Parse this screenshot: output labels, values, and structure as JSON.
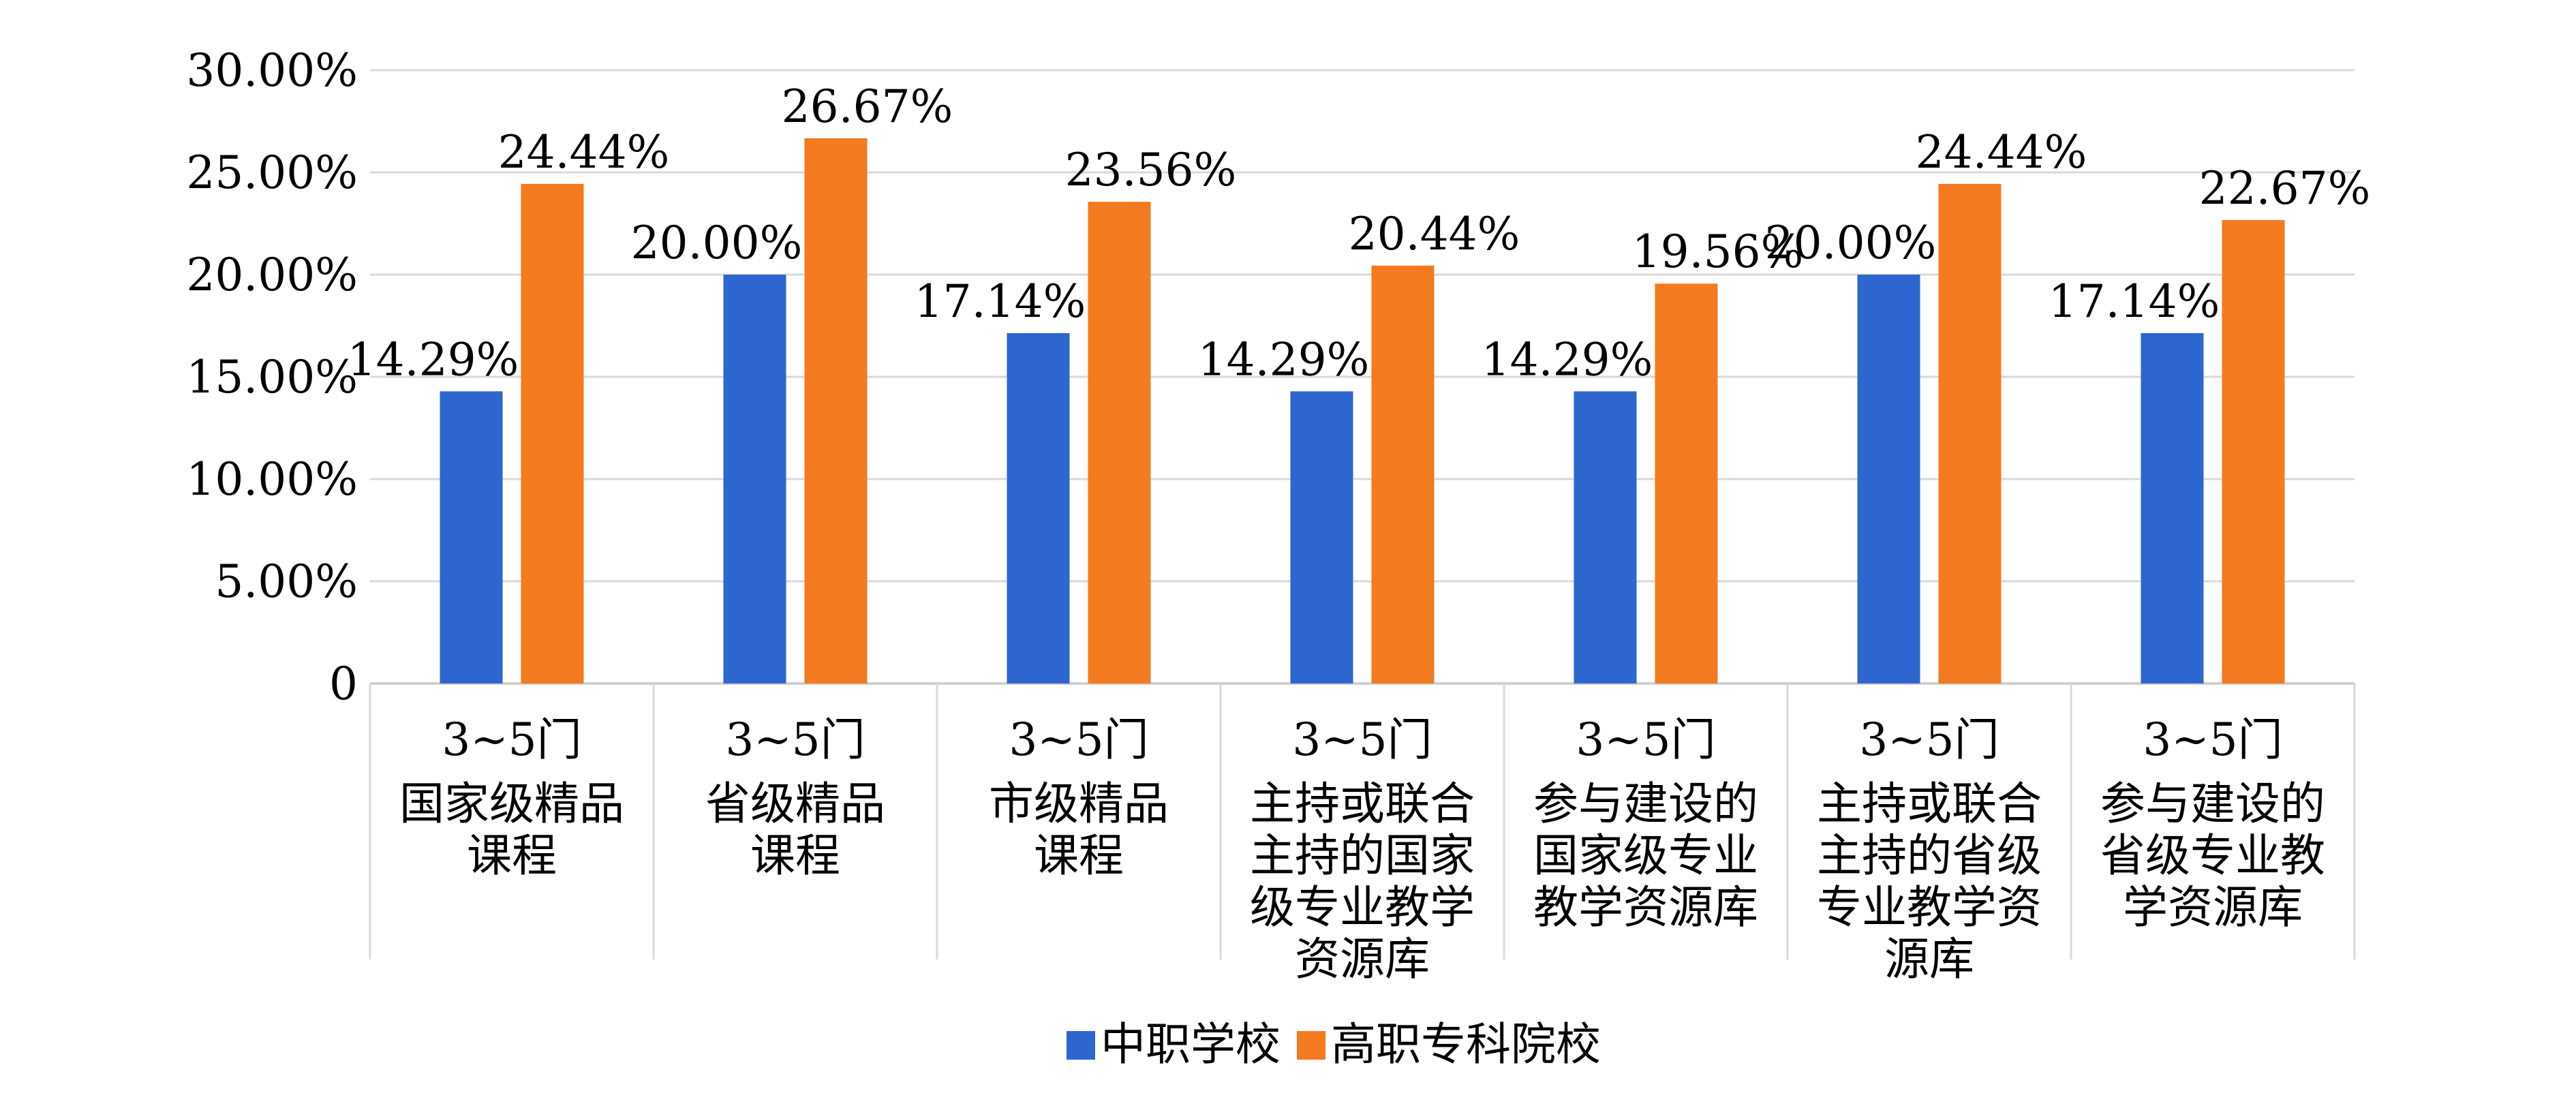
{
  "chart_data": {
    "type": "bar",
    "title": "",
    "xlabel": "",
    "ylabel": "",
    "ylim": [
      0,
      30
    ],
    "yticks": [
      "0",
      "5.00%",
      "10.00%",
      "15.00%",
      "20.00%",
      "25.00%",
      "30.00%"
    ],
    "grid": true,
    "legend_position": "bottom",
    "categories": [
      [
        "3~5门",
        "国家级精品",
        "课程"
      ],
      [
        "3~5门",
        "省级精品",
        "课程"
      ],
      [
        "3~5门",
        "市级精品",
        "课程"
      ],
      [
        "3~5门",
        "主持或联合",
        "主持的国家",
        "级专业教学",
        "资源库"
      ],
      [
        "3~5门",
        "参与建设的",
        "国家级专业",
        "教学资源库"
      ],
      [
        "3~5门",
        "主持或联合",
        "主持的省级",
        "专业教学资",
        "源库"
      ],
      [
        "3~5门",
        "参与建设的",
        "省级专业教",
        "学资源库"
      ]
    ],
    "series": [
      {
        "name": "中职学校",
        "color": "#2E66CF",
        "values": [
          14.29,
          20.0,
          17.14,
          14.29,
          14.29,
          20.0,
          17.14
        ],
        "labels": [
          "14.29%",
          "20.00%",
          "17.14%",
          "14.29%",
          "14.29%",
          "20.00%",
          "17.14%"
        ]
      },
      {
        "name": "高职专科院校",
        "color": "#F47A1F",
        "values": [
          24.44,
          26.67,
          23.56,
          20.44,
          19.56,
          24.44,
          22.67
        ],
        "labels": [
          "24.44%",
          "26.67%",
          "23.56%",
          "20.44%",
          "19.56%",
          "24.44%",
          "22.67%"
        ]
      }
    ]
  }
}
